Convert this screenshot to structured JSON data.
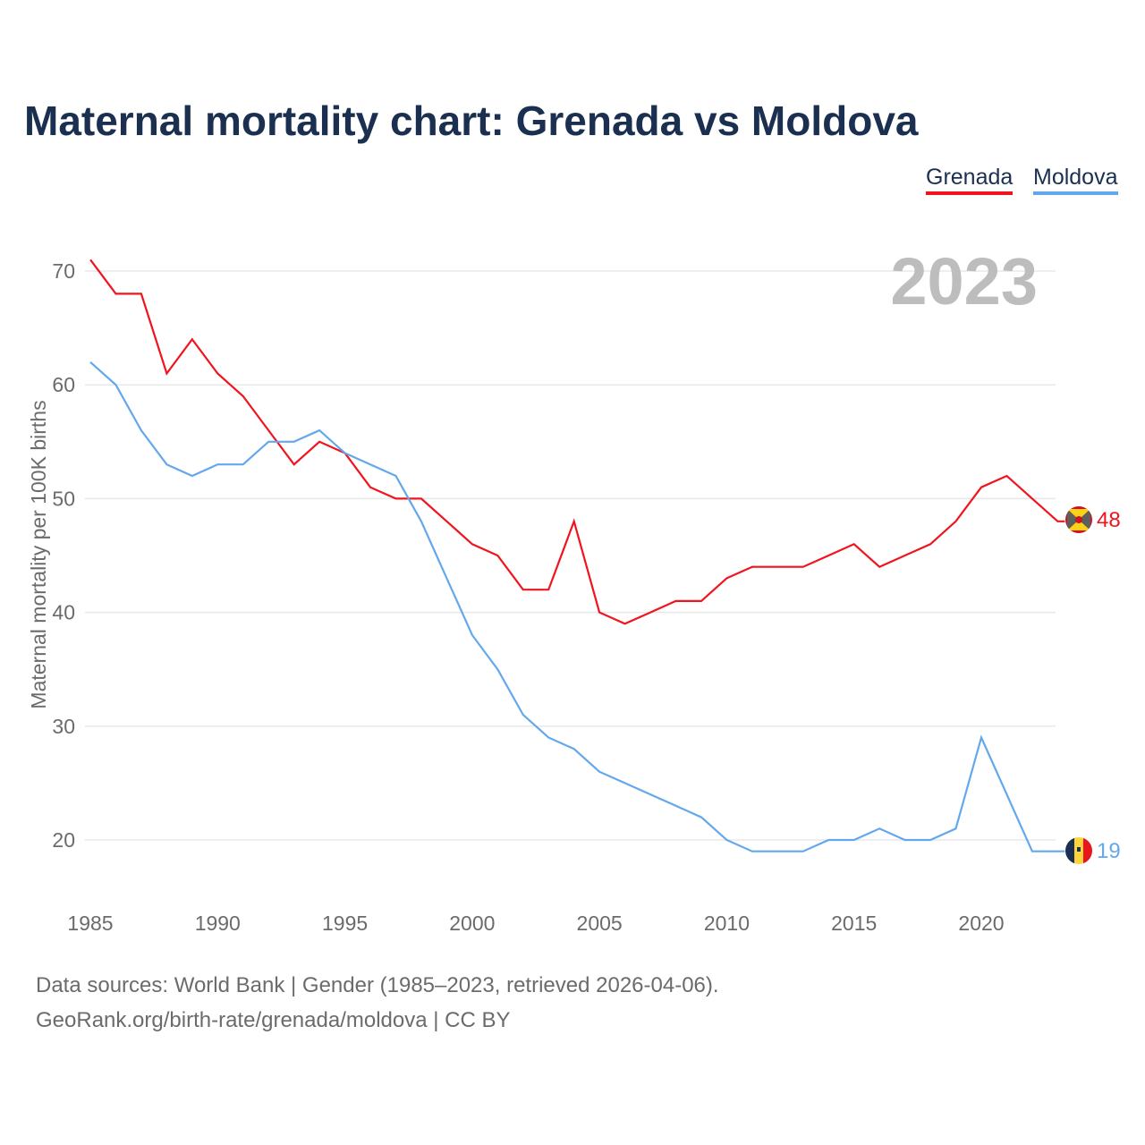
{
  "title": "Maternal mortality chart: Grenada vs Moldova",
  "source_line1": "Data sources: World Bank | Gender (1985–2023, retrieved 2026-04-06).",
  "source_line2": "GeoRank.org/birth-rate/grenada/moldova | CC BY",
  "chart_data": {
    "type": "line",
    "title": "Maternal mortality chart: Grenada vs Moldova",
    "ylabel": "Maternal mortality per 100K births",
    "xlabel": "",
    "year_label": "2023",
    "x": [
      1985,
      1986,
      1987,
      1988,
      1989,
      1990,
      1991,
      1992,
      1993,
      1994,
      1995,
      1996,
      1997,
      1998,
      1999,
      2000,
      2001,
      2002,
      2003,
      2004,
      2005,
      2006,
      2007,
      2008,
      2009,
      2010,
      2011,
      2012,
      2013,
      2014,
      2015,
      2016,
      2017,
      2018,
      2019,
      2020,
      2021,
      2022,
      2023
    ],
    "xticks": [
      "1985",
      "1990",
      "1995",
      "2000",
      "2005",
      "2010",
      "2015",
      "2020"
    ],
    "yticks": [
      "20",
      "30",
      "40",
      "50",
      "60",
      "70"
    ],
    "ylim": [
      15,
      75
    ],
    "xlim": [
      1985,
      2023
    ],
    "grid": true,
    "legend_position": "top-right",
    "series": [
      {
        "name": "Grenada",
        "color": "#f0141e",
        "end_label": "48",
        "values": [
          71,
          68,
          68,
          61,
          64,
          61,
          59,
          56,
          53,
          55,
          54,
          51,
          50,
          50,
          48,
          46,
          45,
          42,
          42,
          48,
          40,
          39,
          40,
          41,
          41,
          43,
          44,
          44,
          44,
          45,
          46,
          44,
          45,
          46,
          48,
          51,
          52,
          50,
          48
        ]
      },
      {
        "name": "Moldova",
        "color": "#63a8ed",
        "end_label": "19",
        "values": [
          62,
          60,
          56,
          53,
          52,
          53,
          53,
          55,
          55,
          56,
          54,
          53,
          52,
          48,
          43,
          38,
          35,
          31,
          29,
          28,
          26,
          25,
          24,
          23,
          22,
          20,
          19,
          19,
          19,
          20,
          20,
          21,
          20,
          20,
          21,
          29,
          24,
          19,
          19
        ]
      }
    ]
  }
}
